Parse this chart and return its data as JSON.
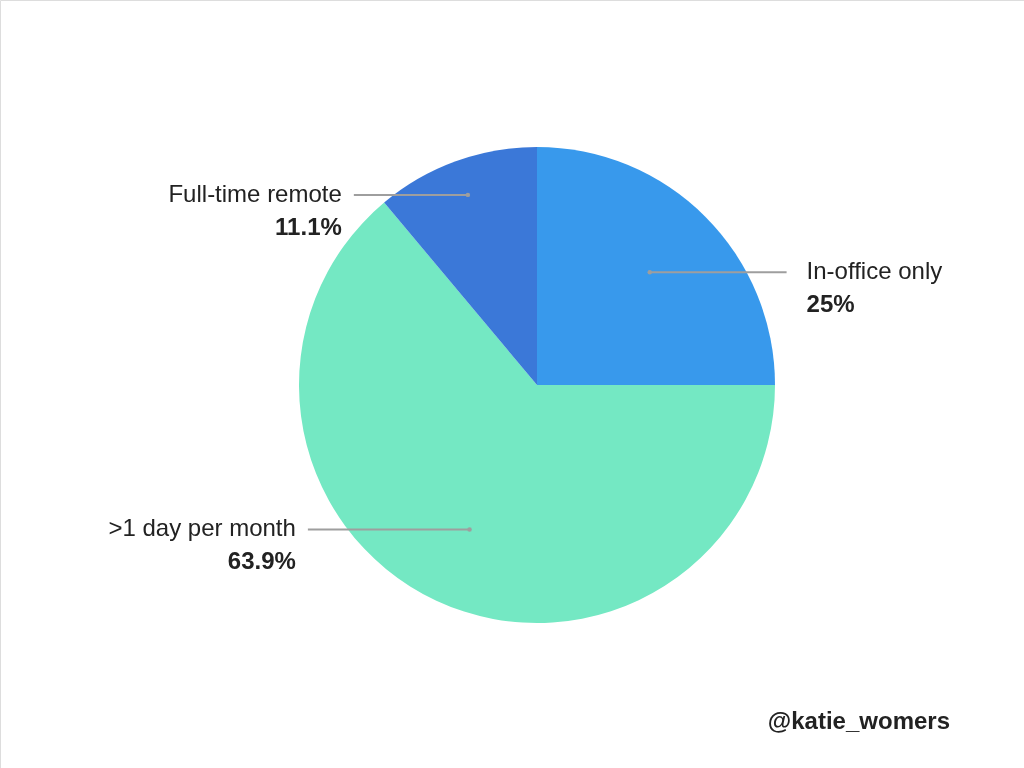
{
  "chart_data": {
    "type": "pie",
    "categories": [
      "In-office only",
      ">1 day per month",
      "Full-time remote"
    ],
    "values": [
      25,
      63.9,
      11.1
    ],
    "colors": [
      "#3899ec",
      "#74e8c3",
      "#3b78d8"
    ],
    "value_labels": [
      "25%",
      "63.9%",
      "11.1%"
    ],
    "annotations": [
      "@katie_womers"
    ]
  }
}
